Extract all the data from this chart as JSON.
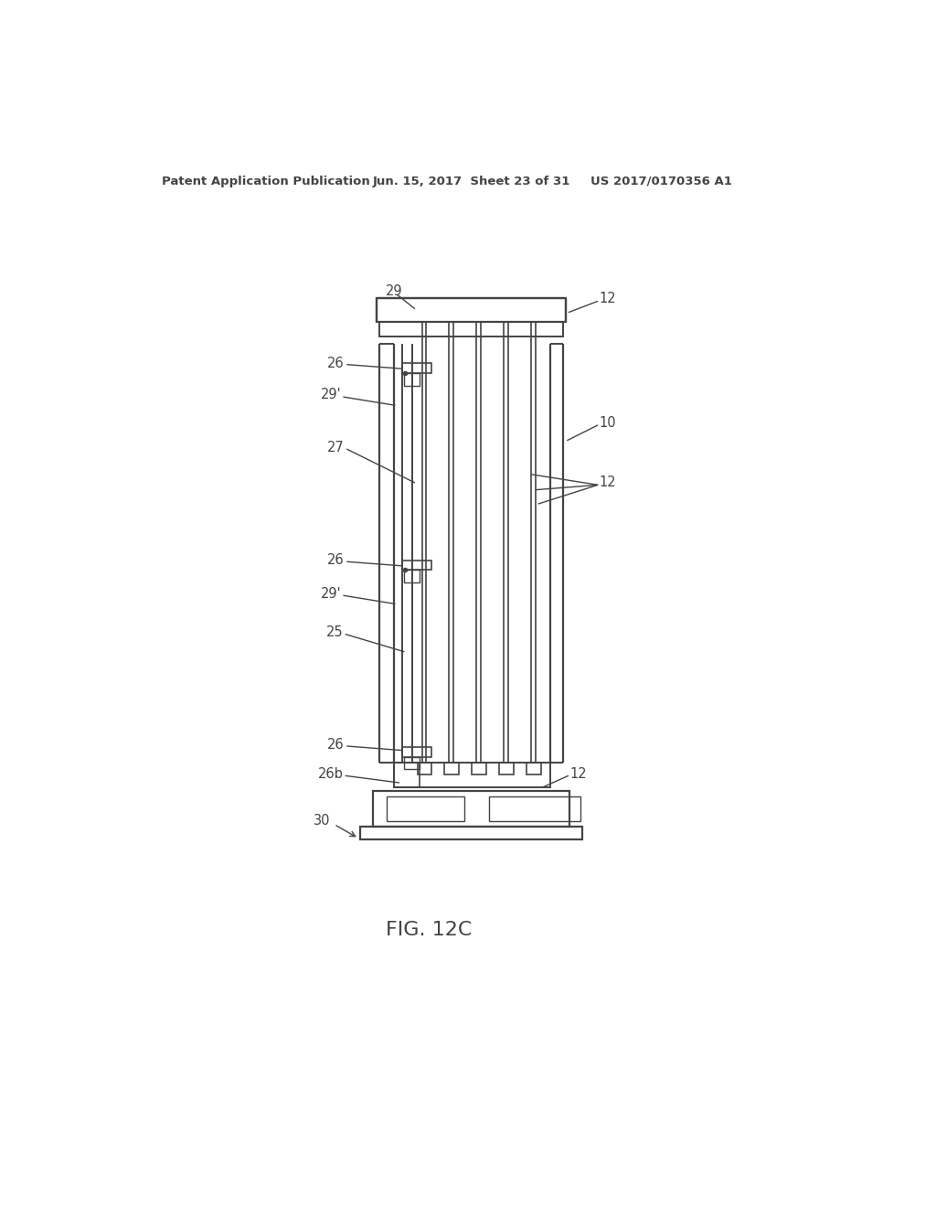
{
  "bg_color": "#ffffff",
  "line_color": "#444444",
  "header_left": "Patent Application Publication",
  "header_center": "Jun. 15, 2017  Sheet 23 of 31",
  "header_right": "US 2017/0170356 A1",
  "title": "FIG. 12C",
  "fig_width": 10.24,
  "fig_height": 13.2,
  "dpi": 100
}
